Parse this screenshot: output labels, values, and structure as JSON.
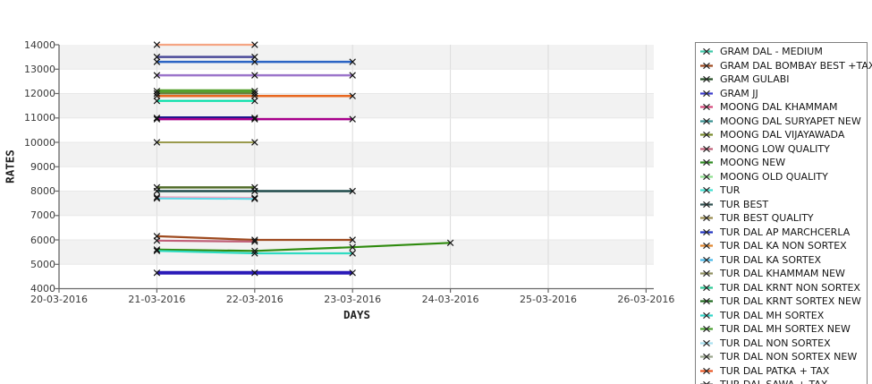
{
  "chart_data": {
    "type": "line",
    "title": "",
    "xlabel": "DAYS",
    "ylabel": "RATES",
    "x_tick_labels": [
      "20-03-2016",
      "21-03-2016",
      "22-03-2016",
      "23-03-2016",
      "24-03-2016",
      "25-03-2016",
      "26-03-2016"
    ],
    "y_tick_labels": [
      "14000",
      "13000",
      "12000",
      "11000",
      "10000",
      "9000",
      "8000",
      "7000",
      "6000",
      "5000",
      "4000"
    ],
    "ylim": [
      4000,
      14000
    ],
    "grid": "alternating horizontal bands + vertical day gridlines",
    "legend_position": "right",
    "marker": "x",
    "style": {
      "band_color": "#F2F2F2",
      "plot_bg": "#FFFFFF",
      "gridline_color": "#DBDBDB",
      "axis_color": "#666666",
      "marker_color": "#111111",
      "tick_text_color": "#3A3A3A"
    },
    "series": [
      {
        "label": "",
        "color": "#F5A583",
        "width": 2.2,
        "points": [
          [
            "21-03-2016",
            14000
          ],
          [
            "22-03-2016",
            14000
          ]
        ]
      },
      {
        "label": "",
        "color": "#4A4A99",
        "width": 2.5,
        "points": [
          [
            "21-03-2016",
            13500
          ],
          [
            "22-03-2016",
            13500
          ]
        ]
      },
      {
        "label": "TUR DAL KA SORTEX",
        "color": "#2B64C4",
        "width": 2.5,
        "points": [
          [
            "21-03-2016",
            13300
          ],
          [
            "22-03-2016",
            13300
          ],
          [
            "23-03-2016",
            13300
          ]
        ]
      },
      {
        "label": "",
        "color": "#9C75CB",
        "width": 2.5,
        "points": [
          [
            "21-03-2016",
            12750
          ],
          [
            "22-03-2016",
            12750
          ],
          [
            "23-03-2016",
            12750
          ]
        ]
      },
      {
        "label": "TUR DAL MH SORTEX NEW",
        "color": "#56A02E",
        "width": 4,
        "points": [
          [
            "21-03-2016",
            12100
          ],
          [
            "22-03-2016",
            12100
          ]
        ]
      },
      {
        "label": "TUR DAL KHAMMAM NEW",
        "color": "#6B7B3B",
        "width": 2,
        "points": [
          [
            "21-03-2016",
            12000
          ],
          [
            "22-03-2016",
            12000
          ]
        ]
      },
      {
        "label": "TUR DAL KA NON SORTEX",
        "color": "#E8671F",
        "width": 2.5,
        "points": [
          [
            "21-03-2016",
            11900
          ],
          [
            "22-03-2016",
            11900
          ],
          [
            "23-03-2016",
            11900
          ]
        ]
      },
      {
        "label": "TUR DAL KRNT NON SORTEX",
        "color": "#00E0A8",
        "width": 2.2,
        "points": [
          [
            "21-03-2016",
            11700
          ],
          [
            "22-03-2016",
            11700
          ]
        ]
      },
      {
        "label": "TUR DAL AP MARCHCERLA",
        "color": "#16168C",
        "width": 3.5,
        "points": [
          [
            "21-03-2016",
            11000
          ],
          [
            "22-03-2016",
            11000
          ]
        ]
      },
      {
        "label": "",
        "color": "#A8008C",
        "width": 2.5,
        "points": [
          [
            "21-03-2016",
            10950
          ],
          [
            "22-03-2016",
            10950
          ],
          [
            "23-03-2016",
            10950
          ]
        ]
      },
      {
        "label": "TUR BEST QUALITY",
        "color": "#9A9A4E",
        "width": 2,
        "points": [
          [
            "21-03-2016",
            10000
          ],
          [
            "22-03-2016",
            10000
          ]
        ]
      },
      {
        "label": "MOONG DAL VIJAYAWADA",
        "color": "#506B28",
        "width": 2.5,
        "points": [
          [
            "21-03-2016",
            8150
          ],
          [
            "22-03-2016",
            8150
          ]
        ]
      },
      {
        "label": "TUR BEST",
        "color": "#1F4A4A",
        "width": 2.5,
        "points": [
          [
            "21-03-2016",
            8000
          ],
          [
            "22-03-2016",
            8000
          ],
          [
            "23-03-2016",
            8000
          ]
        ]
      },
      {
        "label": "MOONG DAL KHAMMAM",
        "color": "#EFA6C3",
        "width": 2.2,
        "points": [
          [
            "21-03-2016",
            7750
          ],
          [
            "22-03-2016",
            7720
          ]
        ]
      },
      {
        "label": "TUR",
        "color": "#5CD8E8",
        "width": 2,
        "points": [
          [
            "21-03-2016",
            7700
          ],
          [
            "22-03-2016",
            7680
          ]
        ]
      },
      {
        "label": "GRAM DAL BOMBAY BEST +TAX",
        "color": "#9E4A1F",
        "width": 2.2,
        "points": [
          [
            "21-03-2016",
            6150
          ],
          [
            "22-03-2016",
            6000
          ],
          [
            "23-03-2016",
            6000
          ]
        ]
      },
      {
        "label": "MOONG LOW QUALITY",
        "color": "#C05F78",
        "width": 2.2,
        "points": [
          [
            "21-03-2016",
            5970
          ],
          [
            "22-03-2016",
            5930
          ]
        ]
      },
      {
        "label": "MOONG NEW",
        "color": "#2F8B0E",
        "width": 2.2,
        "points": [
          [
            "21-03-2016",
            5600
          ],
          [
            "22-03-2016",
            5550
          ],
          [
            "23-03-2016",
            5700
          ],
          [
            "24-03-2016",
            5880
          ]
        ]
      },
      {
        "label": "GRAM DAL - MEDIUM",
        "color": "#30DCC2",
        "width": 2.2,
        "points": [
          [
            "21-03-2016",
            5550
          ],
          [
            "22-03-2016",
            5450
          ],
          [
            "23-03-2016",
            5450
          ]
        ]
      },
      {
        "label": "GRAM JJ",
        "color": "#2A1AB8",
        "width": 4,
        "points": [
          [
            "21-03-2016",
            4650
          ],
          [
            "22-03-2016",
            4650
          ],
          [
            "23-03-2016",
            4650
          ]
        ]
      }
    ]
  },
  "legend": {
    "items": [
      {
        "label": "GRAM DAL - MEDIUM",
        "color": "#3CC8A8"
      },
      {
        "label": "GRAM DAL BOMBAY BEST +TAX",
        "color": "#9E4A1F"
      },
      {
        "label": "GRAM GULABI",
        "color": "#254D25"
      },
      {
        "label": "GRAM JJ",
        "color": "#3A3ACC"
      },
      {
        "label": "MOONG DAL KHAMMAM",
        "color": "#D5477A"
      },
      {
        "label": "MOONG DAL SURYAPET NEW",
        "color": "#379090"
      },
      {
        "label": "MOONG DAL VIJAYAWADA",
        "color": "#7A8B2D"
      },
      {
        "label": "MOONG LOW QUALITY",
        "color": "#C05F78"
      },
      {
        "label": "MOONG NEW",
        "color": "#2F8B22"
      },
      {
        "label": "MOONG OLD QUALITY",
        "color": "#8EE08E"
      },
      {
        "label": "TUR",
        "color": "#40E0D0"
      },
      {
        "label": "TUR BEST",
        "color": "#2F4F4F"
      },
      {
        "label": "TUR BEST QUALITY",
        "color": "#9A8B4E"
      },
      {
        "label": "TUR DAL AP MARCHCERLA",
        "color": "#2033C0"
      },
      {
        "label": "TUR DAL KA NON SORTEX",
        "color": "#E0862E"
      },
      {
        "label": "TUR DAL KA SORTEX",
        "color": "#45B8E8"
      },
      {
        "label": "TUR DAL KHAMMAM NEW",
        "color": "#8F8F5F"
      },
      {
        "label": "TUR DAL KRNT NON SORTEX",
        "color": "#2DC996"
      },
      {
        "label": "TUR DAL KRNT SORTEX NEW",
        "color": "#1F6B1F"
      },
      {
        "label": "TUR DAL MH SORTEX",
        "color": "#30D5C8"
      },
      {
        "label": "TUR DAL MH SORTEX NEW",
        "color": "#4A9E2F"
      },
      {
        "label": "TUR DAL NON SORTEX",
        "color": "#A8E0F0"
      },
      {
        "label": "TUR DAL NON SORTEX NEW",
        "color": "#9AA58B"
      },
      {
        "label": "TUR DAL PATKA + TAX",
        "color": "#E85420"
      },
      {
        "label": "TUR DAL SAWA + TAX",
        "color": "#666666"
      }
    ]
  }
}
